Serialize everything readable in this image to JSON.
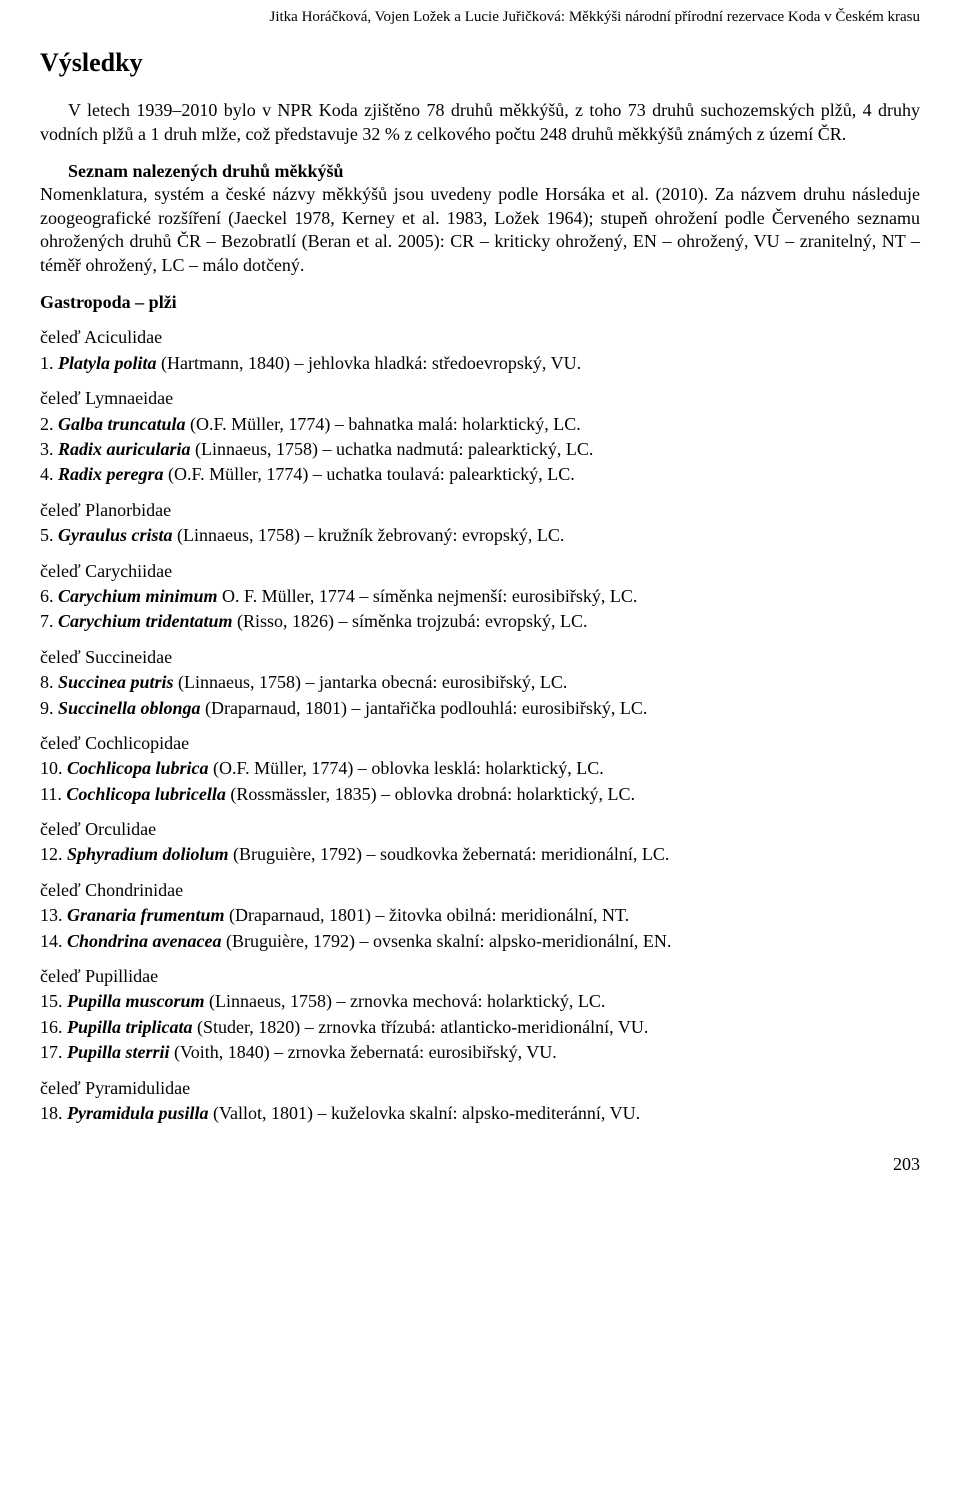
{
  "header": "Jitka Horáčková, Vojen Ložek a Lucie Juřičková: Měkkýši národní přírodní rezervace Koda v Českém krasu",
  "title": "Výsledky",
  "intro_p1_a": "V letech 1939–2010 bylo v NPR Koda zjištěno 78 druhů měkkýšů, z toho 73 druhů suchozemských plžů, 4 druhy vodních plžů a 1 druh mlže, což představuje 32 % z celkového počtu 248 druhů měkkýšů známých z území ČR.",
  "list_heading": "Seznam nalezených druhů měkkýšů",
  "intro_p2_a": "Nomenklatura, systém a české názvy měkkýšů jsou uvedeny podle Horsáka et al. (2010). Za názvem druhu následuje zoogeografické rozšíření (Jaeckel 1978, Kerney et al. 1983, Ložek 1964); stupeň ohrožení podle Červeného seznamu ohrožených druhů ČR – Bezobratlí (Beran et al. 2005): CR – kriticky ohrožený, EN – ohrožený, VU – zranitelný, NT – téměř ohrožený, LC – málo dotčený.",
  "gastropoda_heading": "Gastropoda – plži",
  "families": [
    {
      "name": "čeleď Aciculidae",
      "species": [
        {
          "num": "1.",
          "name_i": "Platyla polita",
          "rest": " (Hartmann, 1840) – jehlovka hladká: středoevropský, VU."
        }
      ]
    },
    {
      "name": "čeleď Lymnaeidae",
      "species": [
        {
          "num": "2.",
          "name_i": "Galba truncatula",
          "rest": " (O.F. Müller, 1774) – bahnatka malá: holarktický, LC."
        },
        {
          "num": "3.",
          "name_i": "Radix auricularia",
          "rest": " (Linnaeus, 1758) – uchatka nadmutá: palearktický, LC."
        },
        {
          "num": "4.",
          "name_i": "Radix peregra",
          "rest": " (O.F. Müller, 1774) – uchatka toulavá: palearktický, LC."
        }
      ]
    },
    {
      "name": "čeleď Planorbidae",
      "species": [
        {
          "num": "5.",
          "name_i": "Gyraulus crista",
          "rest": " (Linnaeus, 1758) – kružník žebrovaný: evropský, LC."
        }
      ]
    },
    {
      "name": "čeleď Carychiidae",
      "species": [
        {
          "num": "6.",
          "name_i": "Carychium minimum",
          "rest": " O. F. Müller, 1774 – síměnka nejmenší: eurosibiřský, LC."
        },
        {
          "num": "7.",
          "name_i": "Carychium tridentatum",
          "rest": " (Risso, 1826) – síměnka trojzubá: evropský, LC."
        }
      ]
    },
    {
      "name": "čeleď Succineidae",
      "species": [
        {
          "num": "8.",
          "name_i": "Succinea putris",
          "rest": " (Linnaeus, 1758) – jantarka obecná: eurosibiřský, LC."
        },
        {
          "num": "9.",
          "name_i": "Succinella oblonga",
          "rest": " (Draparnaud, 1801) – jantařička podlouhlá: eurosibiřský, LC."
        }
      ]
    },
    {
      "name": "čeleď Cochlicopidae",
      "species": [
        {
          "num": "10.",
          "name_i": "Cochlicopa lubrica",
          "rest": " (O.F. Müller, 1774) – oblovka lesklá: holarktický, LC."
        },
        {
          "num": "11.",
          "name_i": "Cochlicopa lubricella",
          "rest": " (Rossmässler, 1835) – oblovka drobná: holarktický, LC."
        }
      ]
    },
    {
      "name": "čeleď Orculidae",
      "species": [
        {
          "num": "12.",
          "name_i": "Sphyradium doliolum",
          "rest": " (Bruguière, 1792) – soudkovka žebernatá: meridionální, LC."
        }
      ]
    },
    {
      "name": "čeleď Chondrinidae",
      "species": [
        {
          "num": "13.",
          "name_i": "Granaria frumentum",
          "rest": " (Draparnaud, 1801) – žitovka obilná: meridionální, NT."
        },
        {
          "num": "14.",
          "name_i": "Chondrina avenacea",
          "rest": " (Bruguière, 1792) – ovsenka skalní: alpsko-meridionální, EN."
        }
      ]
    },
    {
      "name": "čeleď Pupillidae",
      "species": [
        {
          "num": "15.",
          "name_i": "Pupilla muscorum",
          "rest": " (Linnaeus, 1758) – zrnovka mechová: holarktický, LC."
        },
        {
          "num": "16.",
          "name_i": "Pupilla triplicata",
          "rest": " (Studer, 1820) – zrnovka třízubá: atlanticko-meridionální, VU."
        },
        {
          "num": "17.",
          "name_i": "Pupilla sterrii",
          "rest": " (Voith, 1840) – zrnovka žebernatá: eurosibiřský, VU."
        }
      ]
    },
    {
      "name": "čeleď Pyramidulidae",
      "species": [
        {
          "num": "18.",
          "name_i": "Pyramidula pusilla",
          "rest": " (Vallot, 1801) – kuželovka skalní: alpsko-mediteránní, VU."
        }
      ]
    }
  ],
  "page_number": "203"
}
